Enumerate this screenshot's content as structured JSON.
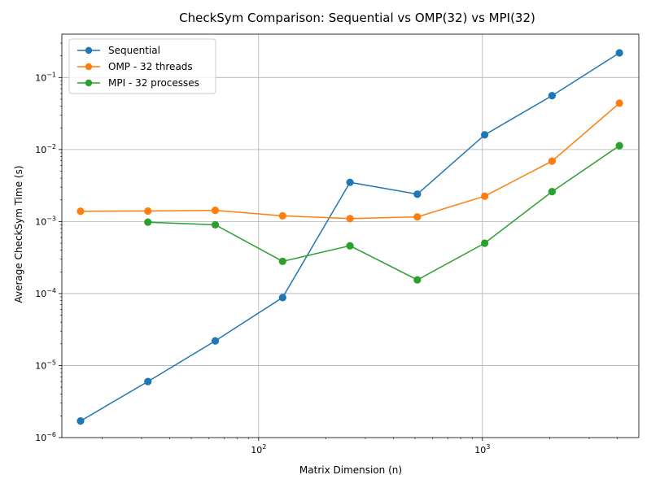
{
  "chart_data": {
    "type": "line",
    "title": "CheckSym Comparison: Sequential vs OMP(32) vs MPI(32)",
    "xlabel": "Matrix Dimension (n)",
    "ylabel": "Average CheckSym Time (s)",
    "xscale": "log",
    "yscale": "log",
    "xlim": [
      13.2,
      5000
    ],
    "ylim": [
      1e-06,
      0.4
    ],
    "grid": true,
    "legend_position": "top-left",
    "x_ticks": [
      {
        "value": 100,
        "base": "10",
        "exp": "2"
      },
      {
        "value": 1000,
        "base": "10",
        "exp": "3"
      }
    ],
    "y_ticks": [
      {
        "value": 1e-06,
        "base": "10",
        "exp": "−6"
      },
      {
        "value": 1e-05,
        "base": "10",
        "exp": "−5"
      },
      {
        "value": 0.0001,
        "base": "10",
        "exp": "−4"
      },
      {
        "value": 0.001,
        "base": "10",
        "exp": "−3"
      },
      {
        "value": 0.01,
        "base": "10",
        "exp": "−2"
      },
      {
        "value": 0.1,
        "base": "10",
        "exp": "−1"
      }
    ],
    "series": [
      {
        "name": "Sequential",
        "color": "#1f77b4",
        "x": [
          16,
          32,
          64,
          128,
          256,
          512,
          1024,
          2048,
          4096
        ],
        "y": [
          1.7e-06,
          6e-06,
          2.2e-05,
          8.8e-05,
          0.0035,
          0.0024,
          0.016,
          0.056,
          0.22
        ]
      },
      {
        "name": "OMP - 32 threads",
        "color": "#ff7f0e",
        "x": [
          16,
          32,
          64,
          128,
          256,
          512,
          1024,
          2048,
          4096
        ],
        "y": [
          0.00139,
          0.0014,
          0.00143,
          0.0012,
          0.0011,
          0.00116,
          0.00225,
          0.0069,
          0.044
        ]
      },
      {
        "name": "MPI - 32 processes",
        "color": "#2ca02c",
        "x": [
          32,
          64,
          128,
          256,
          512,
          1024,
          2048,
          4096
        ],
        "y": [
          0.00098,
          0.0009,
          0.00028,
          0.00046,
          0.000155,
          0.0005,
          0.0026,
          0.0113
        ]
      }
    ]
  }
}
